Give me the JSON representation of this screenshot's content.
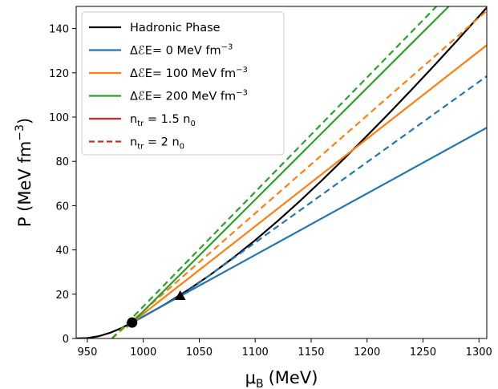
{
  "chart_data": {
    "type": "line",
    "title": "",
    "xlabel": "μ",
    "xlabel_sub": "B",
    "xlabel_unit": "(MeV)",
    "ylabel": "P (MeV fm",
    "ylabel_sup": "−3",
    "ylabel_end": ")",
    "xlim": [
      940,
      1307
    ],
    "ylim": [
      0,
      150
    ],
    "x_ticks": [
      950,
      1000,
      1050,
      1100,
      1150,
      1200,
      1250,
      1300
    ],
    "y_ticks": [
      0,
      20,
      40,
      60,
      80,
      100,
      120,
      140
    ],
    "grid": false,
    "legend_position": "top-left",
    "colors": {
      "hadronic": "#000000",
      "de0": "#1f77b4",
      "de100": "#ff7f0e",
      "de200": "#2ca02c",
      "ntr15": "#d62728"
    },
    "legend": [
      {
        "parts": [
          {
            "t": "Hadronic Phase"
          }
        ],
        "color": "#000000",
        "dash": false
      },
      {
        "parts": [
          {
            "t": "ΔℰE= 0 MeV fm"
          },
          {
            "t": "−3",
            "sup": true
          }
        ],
        "color": "#1f77b4",
        "dash": false
      },
      {
        "parts": [
          {
            "t": "ΔℰE= 100 MeV fm"
          },
          {
            "t": "−3",
            "sup": true
          }
        ],
        "color": "#ff7f0e",
        "dash": false
      },
      {
        "parts": [
          {
            "t": "ΔℰE= 200 MeV fm"
          },
          {
            "t": "−3",
            "sup": true
          }
        ],
        "color": "#2ca02c",
        "dash": false
      },
      {
        "parts": [
          {
            "t": "n"
          },
          {
            "t": "tr",
            "sub": true
          },
          {
            "t": " = 1.5 n"
          },
          {
            "t": "0",
            "sub": true
          }
        ],
        "color": "#d62728",
        "dash": false
      },
      {
        "parts": [
          {
            "t": "n"
          },
          {
            "t": "tr",
            "sub": true
          },
          {
            "t": " = 2 n"
          },
          {
            "t": "0",
            "sub": true
          }
        ],
        "color": "#d62728",
        "dash": true
      }
    ],
    "series": [
      {
        "key": "hadronic",
        "color": "#000000",
        "dash": false,
        "x": [
          940,
          950,
          960,
          970,
          980,
          990,
          1000,
          1020,
          1040,
          1060,
          1080,
          1100,
          1120,
          1140,
          1160,
          1180,
          1200,
          1220,
          1240,
          1260,
          1280,
          1300,
          1307
        ],
        "y": [
          0,
          0.2,
          1.0,
          2.5,
          4.6,
          7.2,
          9.9,
          15.6,
          21.9,
          28.8,
          36.3,
          44.4,
          53.0,
          62.1,
          71.6,
          81.5,
          91.6,
          101.9,
          112.5,
          123.3,
          134.3,
          145.5,
          149.5
        ]
      },
      {
        "key": "de0_ntr15",
        "color": "#1f77b4",
        "dash": false,
        "x": [
          990,
          1307
        ],
        "y": [
          7.2,
          95.2
        ]
      },
      {
        "key": "de0_ntr2",
        "color": "#1f77b4",
        "dash": true,
        "x": [
          1033,
          1307
        ],
        "y": [
          19.0,
          118.5
        ]
      },
      {
        "key": "de100_ntr15",
        "color": "#ff7f0e",
        "dash": false,
        "x": [
          990,
          1307
        ],
        "y": [
          7.2,
          132.5
        ]
      },
      {
        "key": "de100_ntr2",
        "color": "#ff7f0e",
        "dash": true,
        "x": [
          972,
          1307
        ],
        "y": [
          0,
          148.0
        ]
      },
      {
        "key": "de200_ntr15",
        "color": "#2ca02c",
        "dash": false,
        "x": [
          985,
          990,
          1273
        ],
        "y": [
          5.0,
          7.2,
          150
        ]
      },
      {
        "key": "de200_ntr2",
        "color": "#2ca02c",
        "dash": true,
        "x": [
          972,
          1262
        ],
        "y": [
          0,
          150
        ]
      }
    ],
    "markers": [
      {
        "shape": "circle",
        "x": 990,
        "y": 7.2,
        "color": "#000000"
      },
      {
        "shape": "triangle",
        "x": 1033,
        "y": 19.0,
        "color": "#000000"
      }
    ]
  }
}
